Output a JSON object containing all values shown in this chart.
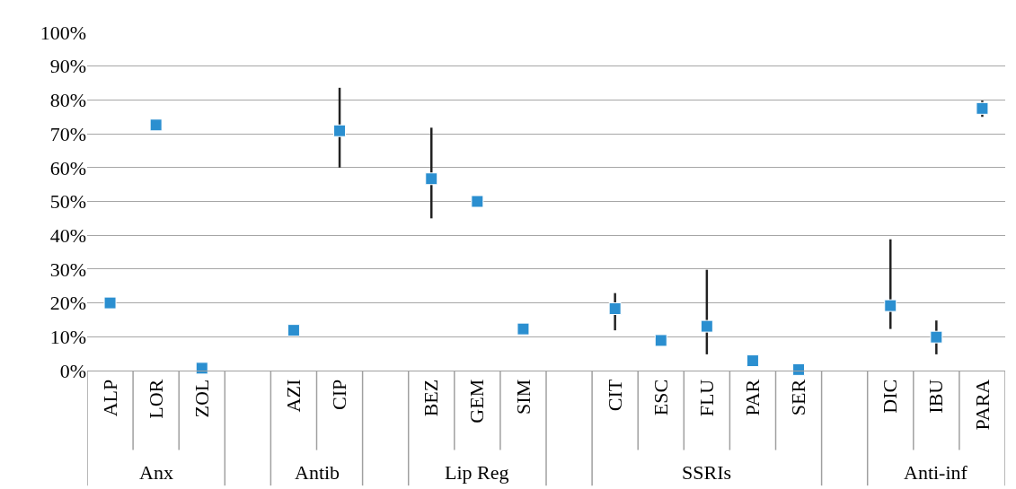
{
  "chart_data": {
    "type": "scatter",
    "categories": [
      "ALP",
      "LOR",
      "ZOL",
      null,
      "AZI",
      "CIP",
      null,
      "BEZ",
      "GEM",
      "SIM",
      null,
      "CIT",
      "ESC",
      "FLU",
      "PAR",
      "SER",
      null,
      "DIC",
      "IBU",
      "PARA"
    ],
    "series": [
      {
        "color": "#2b8fd0",
        "values": [
          20,
          72.6,
          0.7,
          null,
          11.9,
          70.9,
          null,
          56.7,
          50,
          12.3,
          null,
          18.3,
          8.9,
          13.1,
          2.9,
          0.3,
          null,
          19.2,
          9.9,
          77.5
        ],
        "errors": [
          null,
          null,
          null,
          null,
          null,
          [
            60,
            83.6
          ],
          null,
          [
            45,
            71.8
          ],
          null,
          null,
          null,
          [
            11.9,
            22.9
          ],
          null,
          [
            4.8,
            29.8
          ],
          null,
          null,
          null,
          [
            12.3,
            38.8
          ],
          [
            4.8,
            14.8
          ],
          [
            75,
            79.8
          ]
        ]
      }
    ],
    "ylim": [
      0,
      100
    ],
    "yticks": [
      {
        "value": 0,
        "label": "0%"
      },
      {
        "value": 10,
        "label": "10%"
      },
      {
        "value": 20,
        "label": "20%"
      },
      {
        "value": 30,
        "label": "30%"
      },
      {
        "value": 40,
        "label": "40%"
      },
      {
        "value": 50,
        "label": "50%"
      },
      {
        "value": 60,
        "label": "60%"
      },
      {
        "value": 70,
        "label": "70%"
      },
      {
        "value": 80,
        "label": "80%"
      },
      {
        "value": 90,
        "label": "90%"
      },
      {
        "value": 100,
        "label": "100%"
      }
    ],
    "annotations": [
      "Anx",
      "Antib",
      "Lip Reg",
      "SSRIs",
      "Anti-inf"
    ],
    "grid": "y",
    "marker": "square"
  }
}
